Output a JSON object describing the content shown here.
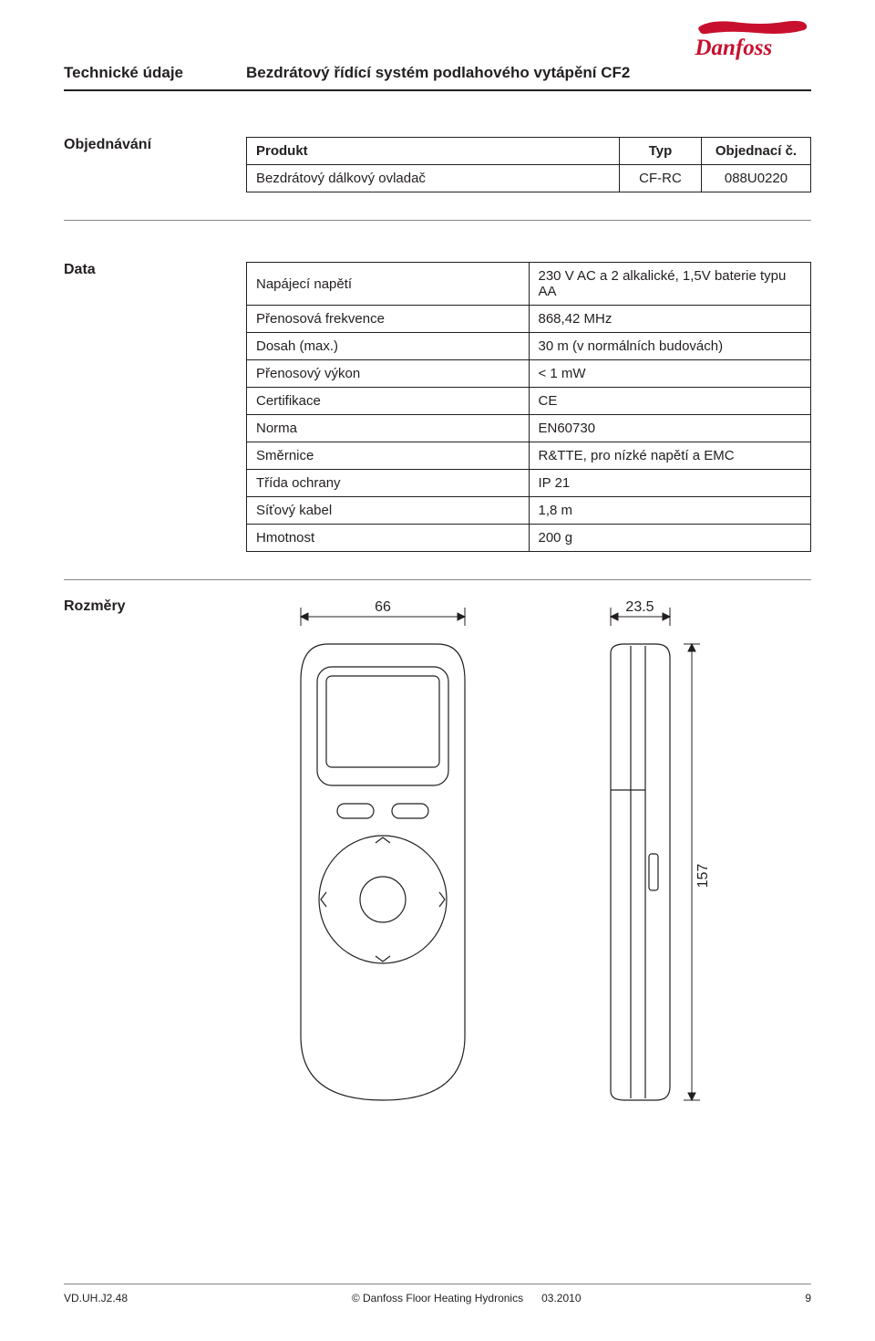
{
  "header": {
    "section_label": "Technické údaje",
    "title": "Bezdrátový řídící systém podlahového vytápění CF2"
  },
  "ordering": {
    "heading": "Objednávání",
    "columns": [
      "Produkt",
      "Typ",
      "Objednací č."
    ],
    "rows": [
      [
        "Bezdrátový dálkový ovladač",
        "CF-RC",
        "088U0220"
      ]
    ]
  },
  "data": {
    "heading": "Data",
    "rows": [
      [
        "Napájecí napětí",
        "230 V AC a 2 alkalické, 1,5V baterie typu AA"
      ],
      [
        "Přenosová frekvence",
        "868,42 MHz"
      ],
      [
        "Dosah (max.)",
        "30 m (v normálních budovách)"
      ],
      [
        "Přenosový výkon",
        "< 1 mW"
      ],
      [
        "Certifikace",
        "CE"
      ],
      [
        "Norma",
        "EN60730"
      ],
      [
        "Směrnice",
        "R&TTE, pro nízké napětí a EMC"
      ],
      [
        "Třída ochrany",
        "IP 21"
      ],
      [
        "Síťový kabel",
        "1,8 m"
      ],
      [
        "Hmotnost",
        "200 g"
      ]
    ]
  },
  "dimensions": {
    "heading": "Rozměry",
    "width_label": "66",
    "depth_label": "23.5",
    "height_label": "157"
  },
  "footer": {
    "code": "VD.UH.J2.48",
    "copyright": "© Danfoss Floor Heating Hydronics",
    "date": "03.2010",
    "page": "9"
  },
  "colors": {
    "text": "#231f20",
    "line": "#231f20",
    "separator": "#888888",
    "brand": "#c8102e"
  }
}
